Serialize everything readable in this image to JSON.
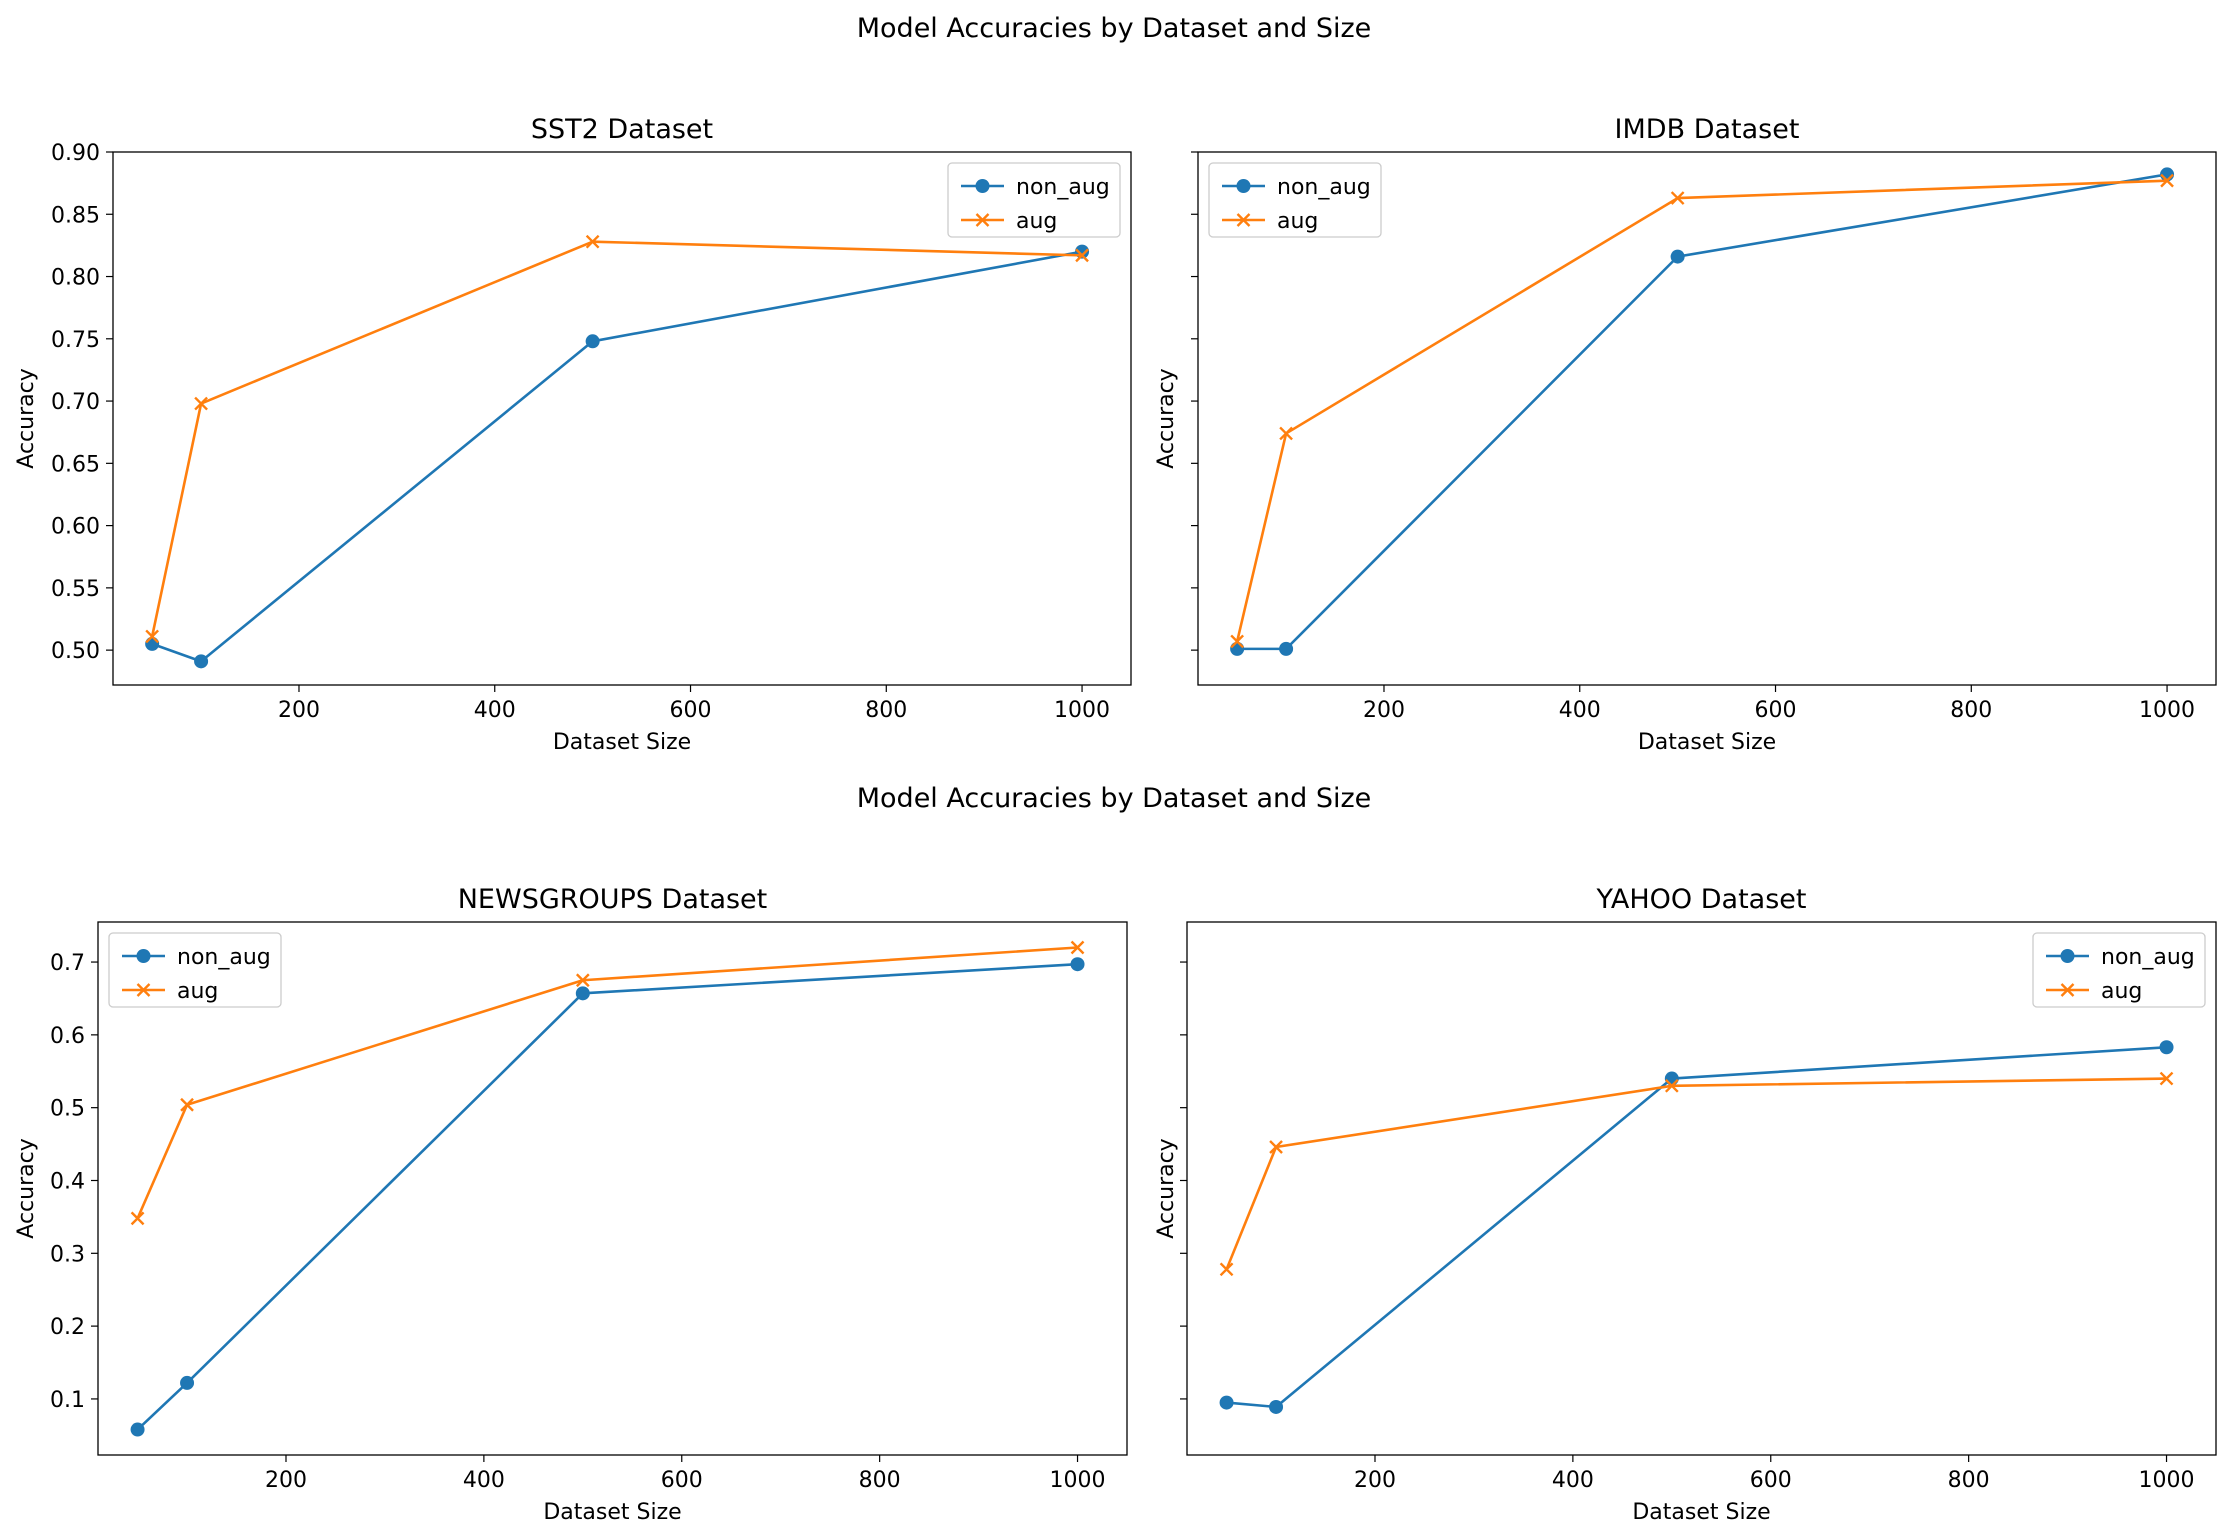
{
  "figure": {
    "suptitles": [
      "Model Accuracies by Dataset and Size",
      "Model Accuracies by Dataset and Size"
    ]
  },
  "colors": {
    "non_aug": "#1f77b4",
    "aug": "#ff7f0e"
  },
  "chart_data": [
    {
      "type": "line",
      "title": "SST2 Dataset",
      "xlabel": "Dataset Size",
      "ylabel": "Accuracy",
      "x": [
        50,
        100,
        500,
        1000
      ],
      "xlim": [
        10,
        1050
      ],
      "ylim": [
        0.472,
        0.9
      ],
      "xticks": [
        200,
        400,
        600,
        800,
        1000
      ],
      "yticks": [
        0.5,
        0.55,
        0.6,
        0.65,
        0.7,
        0.75,
        0.8,
        0.85,
        0.9
      ],
      "ytick_labels": [
        "0.50",
        "0.55",
        "0.60",
        "0.65",
        "0.70",
        "0.75",
        "0.80",
        "0.85",
        "0.90"
      ],
      "show_ytick_labels": true,
      "legend": "top-right",
      "grid": false,
      "series": [
        {
          "name": "non_aug",
          "marker": "circle",
          "values": [
            0.505,
            0.491,
            0.748,
            0.82
          ]
        },
        {
          "name": "aug",
          "marker": "x",
          "values": [
            0.511,
            0.698,
            0.828,
            0.817
          ]
        }
      ]
    },
    {
      "type": "line",
      "title": "IMDB Dataset",
      "xlabel": "Dataset Size",
      "ylabel": "Accuracy",
      "x": [
        50,
        100,
        500,
        1000
      ],
      "xlim": [
        10,
        1050
      ],
      "ylim": [
        0.472,
        0.9
      ],
      "xticks": [
        200,
        400,
        600,
        800,
        1000
      ],
      "yticks": [
        0.5,
        0.55,
        0.6,
        0.65,
        0.7,
        0.75,
        0.8,
        0.85,
        0.9
      ],
      "ytick_labels": [],
      "show_ytick_labels": false,
      "legend": "top-left",
      "grid": false,
      "series": [
        {
          "name": "non_aug",
          "marker": "circle",
          "values": [
            0.501,
            0.501,
            0.816,
            0.882
          ]
        },
        {
          "name": "aug",
          "marker": "x",
          "values": [
            0.507,
            0.674,
            0.863,
            0.877
          ]
        }
      ]
    },
    {
      "type": "line",
      "title": "NEWSGROUPS Dataset",
      "xlabel": "Dataset Size",
      "ylabel": "Accuracy",
      "x": [
        50,
        100,
        500,
        1000
      ],
      "xlim": [
        10,
        1050
      ],
      "ylim": [
        0.023,
        0.755
      ],
      "xticks": [
        200,
        400,
        600,
        800,
        1000
      ],
      "yticks": [
        0.1,
        0.2,
        0.3,
        0.4,
        0.5,
        0.6,
        0.7
      ],
      "ytick_labels": [
        "0.1",
        "0.2",
        "0.3",
        "0.4",
        "0.5",
        "0.6",
        "0.7"
      ],
      "show_ytick_labels": true,
      "legend": "top-left",
      "grid": false,
      "series": [
        {
          "name": "non_aug",
          "marker": "circle",
          "values": [
            0.058,
            0.122,
            0.657,
            0.697
          ]
        },
        {
          "name": "aug",
          "marker": "x",
          "values": [
            0.348,
            0.504,
            0.675,
            0.72
          ]
        }
      ]
    },
    {
      "type": "line",
      "title": "YAHOO Dataset",
      "xlabel": "Dataset Size",
      "ylabel": "Accuracy",
      "x": [
        50,
        100,
        500,
        1000
      ],
      "xlim": [
        10,
        1050
      ],
      "ylim": [
        0.023,
        0.755
      ],
      "xticks": [
        200,
        400,
        600,
        800,
        1000
      ],
      "yticks": [
        0.1,
        0.2,
        0.3,
        0.4,
        0.5,
        0.6,
        0.7
      ],
      "ytick_labels": [],
      "show_ytick_labels": false,
      "legend": "top-right",
      "grid": false,
      "series": [
        {
          "name": "non_aug",
          "marker": "circle",
          "values": [
            0.095,
            0.089,
            0.54,
            0.583
          ]
        },
        {
          "name": "aug",
          "marker": "x",
          "values": [
            0.278,
            0.446,
            0.53,
            0.54
          ]
        }
      ]
    }
  ]
}
